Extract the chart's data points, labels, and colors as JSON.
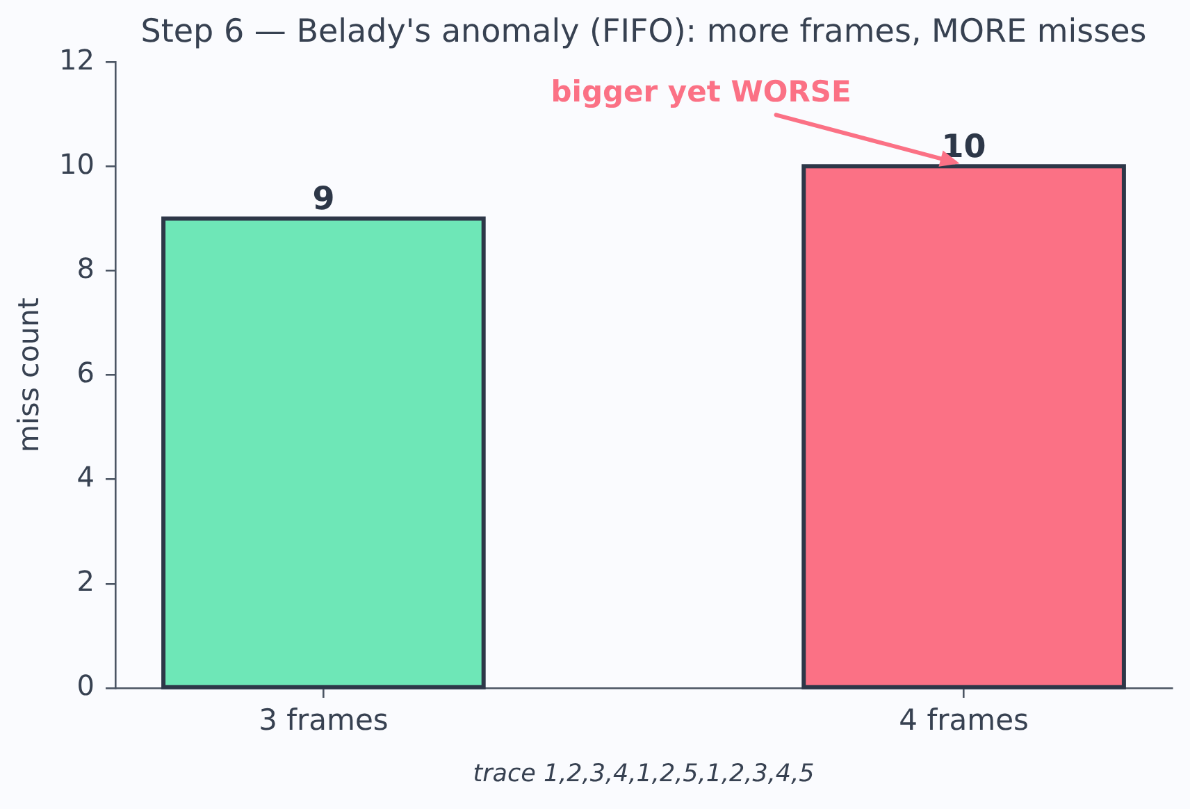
{
  "chart_data": {
    "type": "bar",
    "title": "Step 6 — Belady's anomaly (FIFO): more frames, MORE misses",
    "xlabel": "trace 1,2,3,4,1,2,5,1,2,3,4,5",
    "ylabel": "miss count",
    "categories": [
      "3 frames",
      "4 frames"
    ],
    "values": [
      9,
      10
    ],
    "colors": [
      "#6ee7b7",
      "#fb7185"
    ],
    "ylim": [
      0,
      12
    ],
    "yticks": [
      0,
      2,
      4,
      6,
      8,
      10,
      12
    ],
    "data_labels": true,
    "annotations": [
      {
        "text": "bigger yet WORSE",
        "x": "4 frames",
        "y": 10
      }
    ]
  }
}
